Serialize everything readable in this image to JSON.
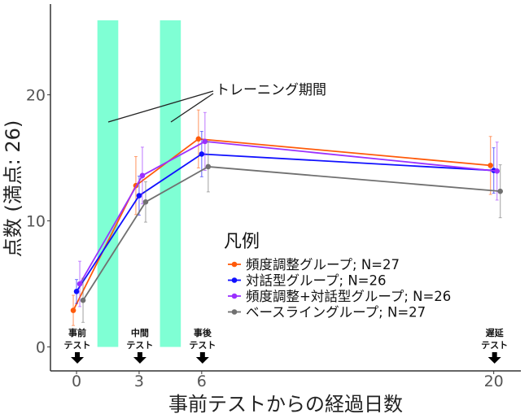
{
  "chart_data": {
    "type": "line",
    "title": "",
    "xlabel": "事前テストからの経過日数",
    "ylabel": "点数 (満点: 26)",
    "x": [
      0,
      3,
      6,
      20
    ],
    "xticks": [
      "0",
      "3",
      "6",
      "20"
    ],
    "yticks": [
      "0",
      "10",
      "20"
    ],
    "xlim": [
      -1.25,
      21.3
    ],
    "ylim": [
      -1.9,
      27.2
    ],
    "grid": false,
    "error_bars": true,
    "legend": {
      "title": "凡例",
      "placement": "center-right"
    },
    "series": [
      {
        "name": "頻度調整グループ; N=27",
        "color": "#ff5a0a",
        "values": [
          2.9,
          12.8,
          16.5,
          14.4
        ],
        "errors": [
          1.2,
          2.3,
          2.3,
          2.3
        ]
      },
      {
        "name": "対話型グループ; N=26",
        "color": "#1010ff",
        "values": [
          4.4,
          12.0,
          15.3,
          14.0
        ],
        "errors": [
          0.95,
          1.55,
          1.8,
          1.8
        ]
      },
      {
        "name": "頻度調整+対話型グループ; N=26",
        "color": "#9b30ff",
        "values": [
          5.0,
          13.6,
          16.3,
          13.95
        ],
        "errors": [
          1.8,
          2.25,
          2.3,
          2.3
        ]
      },
      {
        "name": "ベースライングループ; N=27",
        "color": "#707070",
        "values": [
          3.7,
          11.5,
          14.3,
          12.35
        ],
        "errors": [
          1.75,
          1.6,
          2.0,
          2.1
        ]
      }
    ],
    "shaded_periods": [
      {
        "from": 1,
        "to": 2
      },
      {
        "from": 4,
        "to": 5
      }
    ],
    "shade_color": "#7fffd4",
    "annotation": "トレーニング期間",
    "test_markers": [
      {
        "x": 0,
        "line1": "事前",
        "line2": "テスト"
      },
      {
        "x": 3,
        "line1": "中間",
        "line2": "テスト"
      },
      {
        "x": 6,
        "line1": "事後",
        "line2": "テスト"
      },
      {
        "x": 20,
        "line1": "遅延",
        "line2": "テスト"
      }
    ]
  }
}
